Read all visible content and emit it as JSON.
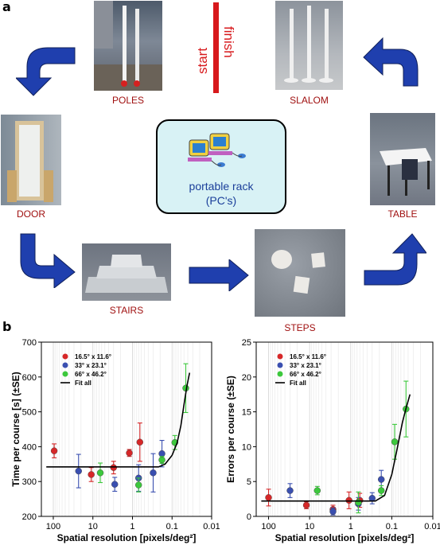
{
  "panel_a": {
    "label": "a",
    "stations": {
      "poles": "POLES",
      "slalom": "SLALOM",
      "door": "DOOR",
      "table": "TABLE",
      "stairs": "STAIRS",
      "steps": "STEPS"
    },
    "start_finish": {
      "start": "start",
      "finish": "finish",
      "bar_color": "#d7191c"
    },
    "rack": {
      "line1": "portable rack",
      "line2": "(PC's)"
    },
    "arrow_color": "#1f3fae",
    "caption_color": "#a01010"
  },
  "panel_b": {
    "label": "b",
    "legend": [
      "16.5° x 11.6°",
      "33° x 23.1°",
      "66° x 46.2°",
      "Fit all"
    ],
    "colors": {
      "16.5° x 11.6°": "#d62728",
      "33° x 23.1°": "#3a4fb0",
      "66° x 46.2°": "#3cc83c"
    }
  },
  "chart_data": [
    {
      "type": "scatter",
      "title": "",
      "xlabel": "Spatial resolution [pixels/deg²]",
      "ylabel": "Time per course [s] (±SE)",
      "x_scale": "log",
      "x_reversed": true,
      "xlim": [
        200,
        0.01
      ],
      "ylim": [
        200,
        700
      ],
      "x_ticks": [
        "100",
        "10",
        "1",
        "0.1",
        "0.01"
      ],
      "y_ticks": [
        200,
        300,
        400,
        500,
        600,
        700
      ],
      "grid": "vertical",
      "legend_position": "top-left",
      "series": [
        {
          "name": "16.5° x 11.6°",
          "color": "#d62728",
          "points": [
            {
              "x": 95,
              "y": 388,
              "err": 20
            },
            {
              "x": 11,
              "y": 320,
              "err": 20
            },
            {
              "x": 3,
              "y": 340,
              "err": 18
            },
            {
              "x": 1.2,
              "y": 382,
              "err": 10
            },
            {
              "x": 0.65,
              "y": 413,
              "err": 55
            }
          ]
        },
        {
          "name": "33° x 23.1°",
          "color": "#3a4fb0",
          "points": [
            {
              "x": 23,
              "y": 330,
              "err": 48
            },
            {
              "x": 2.8,
              "y": 292,
              "err": 20
            },
            {
              "x": 0.7,
              "y": 310,
              "err": 38
            },
            {
              "x": 0.3,
              "y": 325,
              "err": 55
            },
            {
              "x": 0.18,
              "y": 380,
              "err": 38
            }
          ]
        },
        {
          "name": "66° x 46.2°",
          "color": "#3cc83c",
          "points": [
            {
              "x": 6.5,
              "y": 325,
              "err": 28
            },
            {
              "x": 0.7,
              "y": 290,
              "err": 20
            },
            {
              "x": 0.18,
              "y": 362,
              "err": 10
            },
            {
              "x": 0.085,
              "y": 412,
              "err": 20
            },
            {
              "x": 0.045,
              "y": 568,
              "err": 70
            }
          ]
        },
        {
          "name": "Fit all",
          "color": "#000000",
          "kind": "line",
          "points": [
            {
              "x": 150,
              "y": 342
            },
            {
              "x": 0.22,
              "y": 342
            },
            {
              "x": 0.15,
              "y": 350
            },
            {
              "x": 0.1,
              "y": 375
            },
            {
              "x": 0.075,
              "y": 410
            },
            {
              "x": 0.06,
              "y": 460
            },
            {
              "x": 0.05,
              "y": 520
            },
            {
              "x": 0.042,
              "y": 575
            },
            {
              "x": 0.036,
              "y": 612
            }
          ]
        }
      ]
    },
    {
      "type": "scatter",
      "title": "",
      "xlabel": "Spatial resolution [pixels/deg²]",
      "ylabel": "Errors per course (±SE)",
      "x_scale": "log",
      "x_reversed": true,
      "xlim": [
        200,
        0.01
      ],
      "ylim": [
        0,
        25
      ],
      "x_ticks": [
        "100",
        "10",
        "1",
        "0.1",
        "0.01"
      ],
      "y_ticks": [
        0,
        5,
        10,
        15,
        20,
        25
      ],
      "grid": "vertical",
      "legend_position": "top-left",
      "series": [
        {
          "name": "16.5° x 11.6°",
          "color": "#d62728",
          "points": [
            {
              "x": 100,
              "y": 2.7,
              "err": 1.2
            },
            {
              "x": 12,
              "y": 1.6,
              "err": 0.5
            },
            {
              "x": 2.7,
              "y": 1.0,
              "err": 0.6
            },
            {
              "x": 1.1,
              "y": 2.3,
              "err": 1.2
            },
            {
              "x": 0.6,
              "y": 2.3,
              "err": 1.0
            }
          ]
        },
        {
          "name": "33° x 23.1°",
          "color": "#3a4fb0",
          "points": [
            {
              "x": 30,
              "y": 3.7,
              "err": 1.0
            },
            {
              "x": 2.7,
              "y": 0.7,
              "err": 0.5
            },
            {
              "x": 0.65,
              "y": 1.8,
              "err": 0.9
            },
            {
              "x": 0.3,
              "y": 2.6,
              "err": 0.8
            },
            {
              "x": 0.18,
              "y": 5.3,
              "err": 1.3
            }
          ]
        },
        {
          "name": "66° x 46.2°",
          "color": "#3cc83c",
          "points": [
            {
              "x": 6.5,
              "y": 3.7,
              "err": 0.6
            },
            {
              "x": 0.65,
              "y": 2.0,
              "err": 1.5
            },
            {
              "x": 0.18,
              "y": 3.7,
              "err": 0.7
            },
            {
              "x": 0.085,
              "y": 10.7,
              "err": 2.5
            },
            {
              "x": 0.045,
              "y": 15.4,
              "err": 4.0
            }
          ]
        },
        {
          "name": "Fit all",
          "color": "#000000",
          "kind": "line",
          "points": [
            {
              "x": 150,
              "y": 2.2
            },
            {
              "x": 0.25,
              "y": 2.2
            },
            {
              "x": 0.15,
              "y": 3.0
            },
            {
              "x": 0.1,
              "y": 6.0
            },
            {
              "x": 0.075,
              "y": 9.5
            },
            {
              "x": 0.055,
              "y": 13.5
            },
            {
              "x": 0.045,
              "y": 15.5
            },
            {
              "x": 0.036,
              "y": 17.5
            }
          ]
        }
      ]
    }
  ]
}
